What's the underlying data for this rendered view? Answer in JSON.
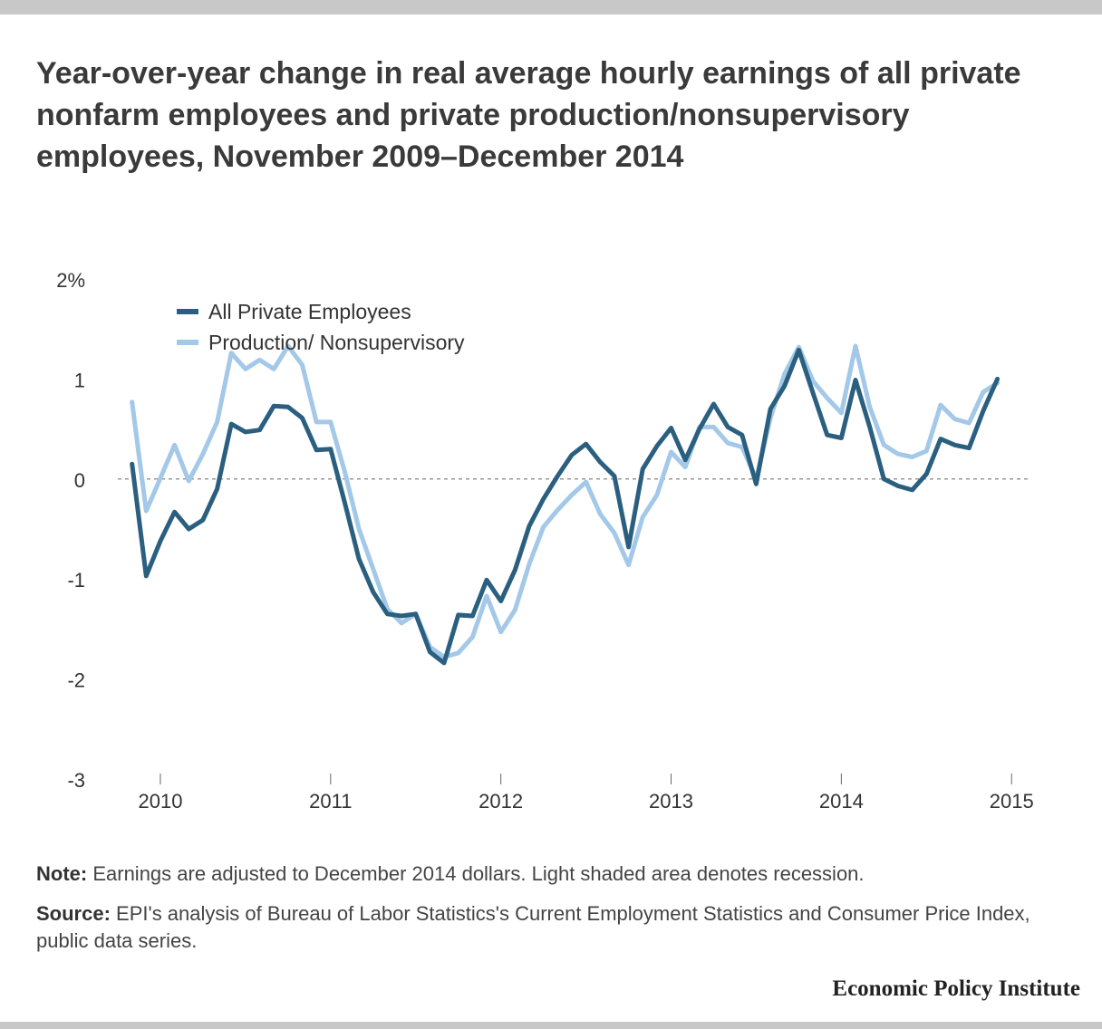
{
  "title": "Year-over-year change in real average hourly earnings of all private nonfarm employees and private production/nonsupervisory employees, November 2009–December 2014",
  "note": {
    "label": "Note:",
    "text": " Earnings are adjusted to December 2014 dollars. Light shaded area denotes recession."
  },
  "source": {
    "label": "Source:",
    "text": " EPI's analysis of Bureau of Labor Statistics's Current Employment Statistics and Consumer Price Index, public data series."
  },
  "branding": "Economic Policy Institute",
  "colors": {
    "all_private": "#2a5f80",
    "production": "#a3c8e8",
    "zero_line": "#777777",
    "text": "#333333"
  },
  "chart_data": {
    "type": "line",
    "title": "Year-over-year change in real average hourly earnings of all private nonfarm employees and private production/nonsupervisory employees, November 2009–December 2014",
    "xlabel": "",
    "ylabel": "",
    "ylim": [
      -3,
      2
    ],
    "xlim": [
      2009.75,
      2015.1
    ],
    "y_ticks": [
      {
        "value": 2,
        "label": "2%"
      },
      {
        "value": 1,
        "label": "1"
      },
      {
        "value": 0,
        "label": "0"
      },
      {
        "value": -1,
        "label": "-1"
      },
      {
        "value": -2,
        "label": "-2"
      },
      {
        "value": -3,
        "label": "-3"
      }
    ],
    "x_ticks": [
      {
        "value": 2010,
        "label": "2010"
      },
      {
        "value": 2011,
        "label": "2011"
      },
      {
        "value": 2012,
        "label": "2012"
      },
      {
        "value": 2013,
        "label": "2013"
      },
      {
        "value": 2014,
        "label": "2014"
      },
      {
        "value": 2015,
        "label": "2015"
      }
    ],
    "reference_line": 0,
    "legend_position": "top-left",
    "start": "2009-11",
    "end": "2014-12",
    "series": [
      {
        "name": "All Private Employees",
        "color": "#2a5f80",
        "values": [
          0.15,
          -0.97,
          -0.62,
          -0.33,
          -0.5,
          -0.41,
          -0.1,
          0.55,
          0.47,
          0.49,
          0.73,
          0.72,
          0.61,
          0.29,
          0.3,
          -0.24,
          -0.8,
          -1.13,
          -1.35,
          -1.37,
          -1.35,
          -1.73,
          -1.84,
          -1.36,
          -1.37,
          -1.01,
          -1.22,
          -0.91,
          -0.47,
          -0.2,
          0.03,
          0.24,
          0.35,
          0.17,
          0.03,
          -0.68,
          0.1,
          0.33,
          0.51,
          0.19,
          0.5,
          0.75,
          0.52,
          0.44,
          -0.05,
          0.7,
          0.93,
          1.29,
          0.86,
          0.44,
          0.41,
          0.99,
          0.52,
          0.0,
          -0.07,
          -0.11,
          0.05,
          0.4,
          0.34,
          0.31,
          0.68,
          1.0
        ]
      },
      {
        "name": "Production/ Nonsupervisory",
        "color": "#a3c8e8",
        "values": [
          0.77,
          -0.32,
          0.01,
          0.34,
          -0.02,
          0.25,
          0.57,
          1.26,
          1.1,
          1.19,
          1.1,
          1.33,
          1.14,
          0.57,
          0.57,
          0.07,
          -0.5,
          -0.9,
          -1.3,
          -1.44,
          -1.35,
          -1.68,
          -1.78,
          -1.74,
          -1.58,
          -1.17,
          -1.53,
          -1.31,
          -0.85,
          -0.48,
          -0.31,
          -0.16,
          -0.03,
          -0.35,
          -0.54,
          -0.86,
          -0.38,
          -0.16,
          0.27,
          0.12,
          0.52,
          0.52,
          0.36,
          0.32,
          0.0,
          0.61,
          1.05,
          1.32,
          0.98,
          0.81,
          0.66,
          1.33,
          0.72,
          0.34,
          0.25,
          0.22,
          0.28,
          0.74,
          0.6,
          0.56,
          0.87,
          0.96
        ]
      }
    ]
  }
}
